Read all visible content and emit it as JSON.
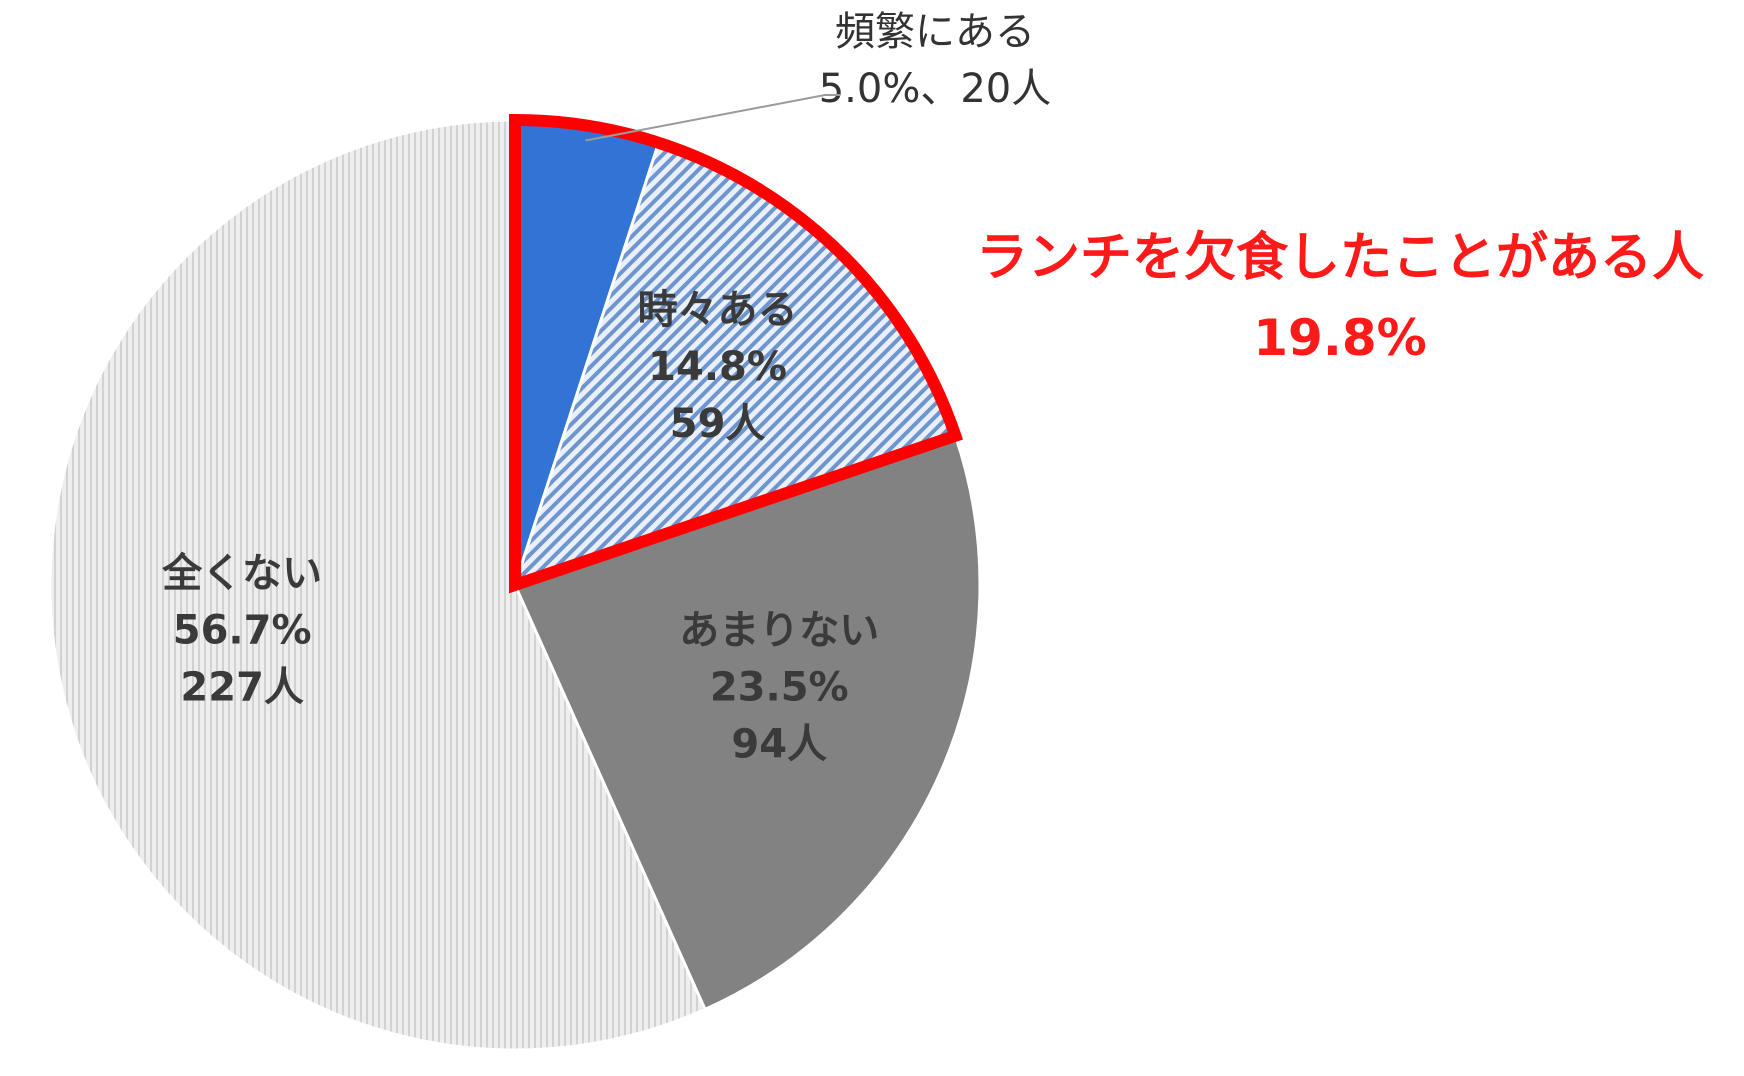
{
  "chart_data": {
    "type": "pie",
    "start_angle_deg": 0,
    "direction": "clockwise",
    "slices": [
      {
        "label": "頻繁にある",
        "percent_text": "5.0%",
        "count_text": "20人",
        "value": 5.0,
        "count": 20,
        "color": "#3274d6",
        "pattern": "solid"
      },
      {
        "label": "時々ある",
        "percent_text": "14.8%",
        "count_text": "59人",
        "value": 14.8,
        "count": 59,
        "color": "#c9d9ef",
        "pattern": "diagonal-stripes"
      },
      {
        "label": "あまりない",
        "percent_text": "23.5%",
        "count_text": "94人",
        "value": 23.5,
        "count": 94,
        "color": "#828282",
        "pattern": "solid"
      },
      {
        "label": "全くない",
        "percent_text": "56.7%",
        "count_text": "227人",
        "value": 56.7,
        "count": 227,
        "color": "#e6e6e6",
        "pattern": "vertical-dots"
      }
    ],
    "highlight": {
      "slices": [
        "頻繁にある",
        "時々ある"
      ],
      "border_color": "#ff0000",
      "label": "ランチを欠食したことがある人",
      "value_text": "19.8%",
      "text_color": "#ff1a1a"
    }
  }
}
